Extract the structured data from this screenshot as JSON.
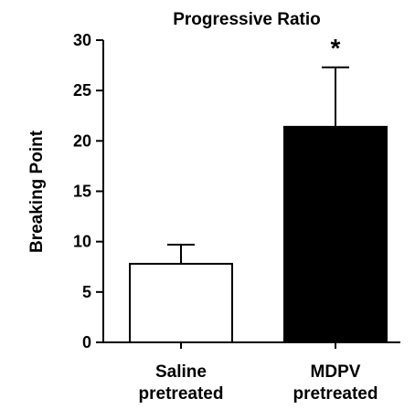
{
  "chart_data": {
    "type": "bar",
    "title": "Progressive Ratio",
    "ylabel": "Breaking Point",
    "xlabel": "",
    "ylim": [
      0,
      30
    ],
    "yticks": [
      0,
      5,
      10,
      15,
      20,
      25,
      30
    ],
    "categories": [
      [
        "Saline",
        "pretreated"
      ],
      [
        "MDPV",
        "pretreated"
      ]
    ],
    "values": [
      7.8,
      21.4
    ],
    "errors": [
      1.9,
      5.9
    ],
    "fills": [
      "#ffffff",
      "#000000"
    ],
    "annotations": [
      "",
      "*"
    ],
    "grid": false
  }
}
